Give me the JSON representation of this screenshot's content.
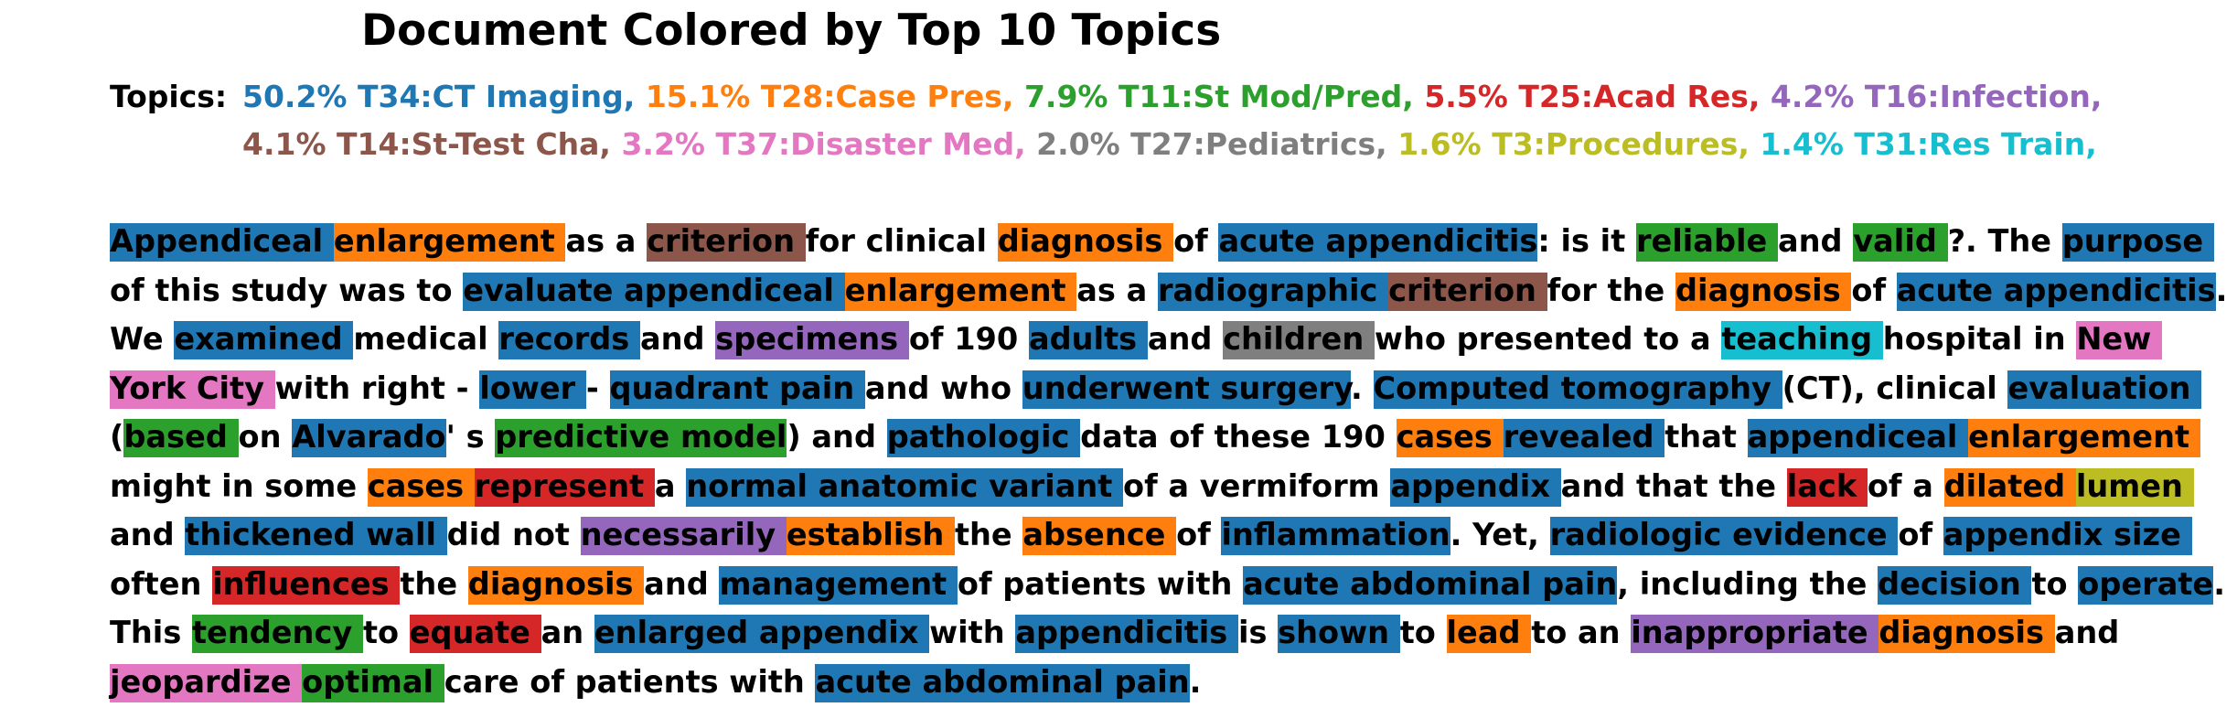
{
  "title": "Document Colored by Top 10 Topics",
  "topics_label": "Topics:",
  "topics": [
    {
      "text": "50.2% T34:CT Imaging,",
      "color": "#1f77b4"
    },
    {
      "text": "15.1% T28:Case Pres,",
      "color": "#ff7f0e"
    },
    {
      "text": "7.9% T11:St Mod/Pred,",
      "color": "#2ca02c"
    },
    {
      "text": "5.5% T25:Acad Res,",
      "color": "#d62728"
    },
    {
      "text": "4.2% T16:Infection,",
      "color": "#9467bd"
    },
    {
      "text": "4.1% T14:St-Test Cha,",
      "color": "#8c564b"
    },
    {
      "text": "3.2% T37:Disaster Med,",
      "color": "#e377c2"
    },
    {
      "text": "2.0% T27:Pediatrics,",
      "color": "#7f7f7f"
    },
    {
      "text": "1.6% T3:Procedures,",
      "color": "#bcbd22"
    },
    {
      "text": "1.4% T31:Res Train,",
      "color": "#17becf"
    }
  ],
  "segments": [
    [
      "Appendiceal ",
      "#1f77b4"
    ],
    [
      "enlargement ",
      "#ff7f0e"
    ],
    [
      "as a ",
      null
    ],
    [
      "criterion ",
      "#8c564b"
    ],
    [
      "for clinical ",
      null
    ],
    [
      "diagnosis ",
      "#ff7f0e"
    ],
    [
      "of ",
      null
    ],
    [
      "acute appendicitis",
      "#1f77b4"
    ],
    [
      ": is it ",
      null
    ],
    [
      "reliable ",
      "#2ca02c"
    ],
    [
      "and ",
      null
    ],
    [
      "valid ",
      "#2ca02c"
    ],
    [
      "?. The ",
      null
    ],
    [
      "purpose ",
      "#1f77b4"
    ],
    [
      "of this study was to ",
      null
    ],
    [
      "evaluate appendiceal ",
      "#1f77b4"
    ],
    [
      "enlargement ",
      "#ff7f0e"
    ],
    [
      "as a ",
      null
    ],
    [
      "radiographic ",
      "#1f77b4"
    ],
    [
      "criterion ",
      "#8c564b"
    ],
    [
      "for the ",
      null
    ],
    [
      "diagnosis ",
      "#ff7f0e"
    ],
    [
      "of ",
      null
    ],
    [
      "acute appendicitis",
      "#1f77b4"
    ],
    [
      ". We ",
      null
    ],
    [
      "examined ",
      "#1f77b4"
    ],
    [
      "medical ",
      null
    ],
    [
      "records ",
      "#1f77b4"
    ],
    [
      "and ",
      null
    ],
    [
      "specimens ",
      "#9467bd"
    ],
    [
      "of 190 ",
      null
    ],
    [
      "adults ",
      "#1f77b4"
    ],
    [
      "and ",
      null
    ],
    [
      "children ",
      "#7f7f7f"
    ],
    [
      "who presented to a ",
      null
    ],
    [
      "teaching ",
      "#17becf"
    ],
    [
      "hospital in ",
      null
    ],
    [
      "New York City ",
      "#e377c2"
    ],
    [
      "with right - ",
      null
    ],
    [
      "lower ",
      "#1f77b4"
    ],
    [
      "- ",
      null
    ],
    [
      "quadrant pain ",
      "#1f77b4"
    ],
    [
      "and who ",
      null
    ],
    [
      "underwent surgery",
      "#1f77b4"
    ],
    [
      ". ",
      null
    ],
    [
      "Computed tomography ",
      "#1f77b4"
    ],
    [
      "(CT), clinical ",
      null
    ],
    [
      "evaluation ",
      "#1f77b4"
    ],
    [
      "(",
      null
    ],
    [
      "based ",
      "#2ca02c"
    ],
    [
      "on ",
      null
    ],
    [
      "Alvarado",
      "#1f77b4"
    ],
    [
      "' s ",
      null
    ],
    [
      "predictive model",
      "#2ca02c"
    ],
    [
      ") and ",
      null
    ],
    [
      "pathologic ",
      "#1f77b4"
    ],
    [
      "data of these 190 ",
      null
    ],
    [
      "cases ",
      "#ff7f0e"
    ],
    [
      "revealed ",
      "#1f77b4"
    ],
    [
      "that ",
      null
    ],
    [
      "appendiceal ",
      "#1f77b4"
    ],
    [
      "enlargement ",
      "#ff7f0e"
    ],
    [
      "might in some ",
      null
    ],
    [
      "cases ",
      "#ff7f0e"
    ],
    [
      "represent ",
      "#d62728"
    ],
    [
      "a ",
      null
    ],
    [
      "normal anatomic variant ",
      "#1f77b4"
    ],
    [
      "of a vermiform ",
      null
    ],
    [
      "appendix ",
      "#1f77b4"
    ],
    [
      "and that the ",
      null
    ],
    [
      "lack ",
      "#d62728"
    ],
    [
      "of a ",
      null
    ],
    [
      "dilated ",
      "#ff7f0e"
    ],
    [
      "lumen ",
      "#bcbd22"
    ],
    [
      "and ",
      null
    ],
    [
      "thickened wall ",
      "#1f77b4"
    ],
    [
      "did not ",
      null
    ],
    [
      "necessarily ",
      "#9467bd"
    ],
    [
      "establish ",
      "#ff7f0e"
    ],
    [
      "the ",
      null
    ],
    [
      "absence ",
      "#ff7f0e"
    ],
    [
      "of ",
      null
    ],
    [
      "inflammation",
      "#1f77b4"
    ],
    [
      ". Yet, ",
      null
    ],
    [
      "radiologic evidence ",
      "#1f77b4"
    ],
    [
      "of ",
      null
    ],
    [
      "appendix size ",
      "#1f77b4"
    ],
    [
      "often ",
      null
    ],
    [
      "influences ",
      "#d62728"
    ],
    [
      "the ",
      null
    ],
    [
      "diagnosis ",
      "#ff7f0e"
    ],
    [
      "and ",
      null
    ],
    [
      "management ",
      "#1f77b4"
    ],
    [
      "of patients with ",
      null
    ],
    [
      "acute abdominal pain",
      "#1f77b4"
    ],
    [
      ", including the ",
      null
    ],
    [
      "decision ",
      "#1f77b4"
    ],
    [
      "to ",
      null
    ],
    [
      "operate",
      "#1f77b4"
    ],
    [
      ". This ",
      null
    ],
    [
      "tendency ",
      "#2ca02c"
    ],
    [
      "to ",
      null
    ],
    [
      "equate ",
      "#d62728"
    ],
    [
      "an ",
      null
    ],
    [
      "enlarged appendix ",
      "#1f77b4"
    ],
    [
      "with ",
      null
    ],
    [
      "appendicitis ",
      "#1f77b4"
    ],
    [
      "is ",
      null
    ],
    [
      "shown ",
      "#1f77b4"
    ],
    [
      "to ",
      null
    ],
    [
      "lead ",
      "#ff7f0e"
    ],
    [
      "to an ",
      null
    ],
    [
      "inappropriate ",
      "#9467bd"
    ],
    [
      "diagnosis ",
      "#ff7f0e"
    ],
    [
      "and ",
      null
    ],
    [
      "jeopardize ",
      "#e377c2"
    ],
    [
      "optimal ",
      "#2ca02c"
    ],
    [
      "care of patients with ",
      null
    ],
    [
      "acute abdominal pain",
      "#1f77b4"
    ],
    [
      ".",
      null
    ]
  ]
}
